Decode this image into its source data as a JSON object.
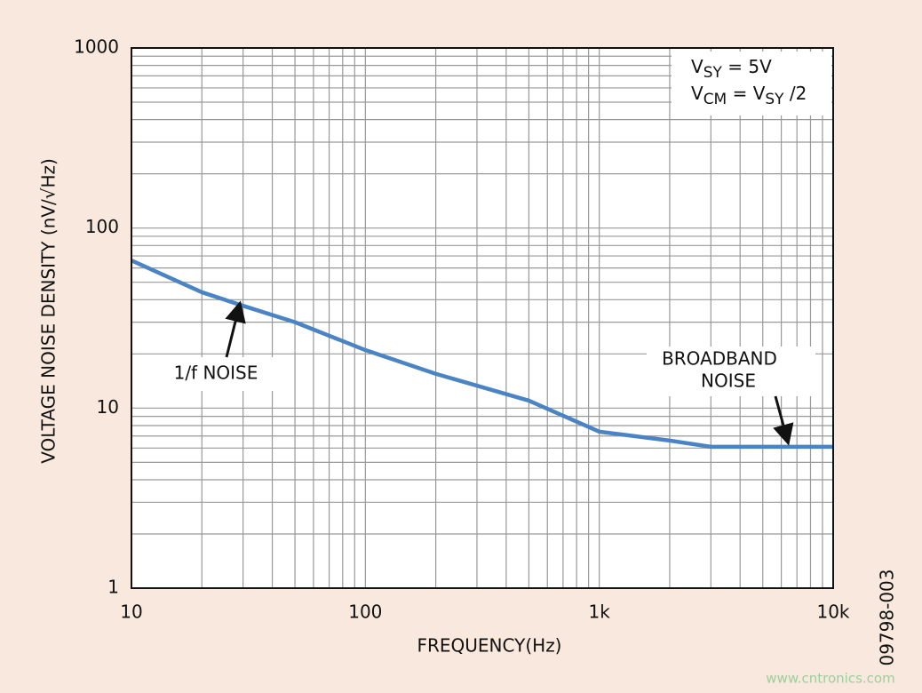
{
  "chart_data": {
    "type": "line",
    "x_label": "FREQUENCY(Hz)",
    "y_label": "VOLTAGE NOISE DENSITY (nV/√Hz)",
    "x": [
      10,
      20,
      30,
      50,
      100,
      200,
      500,
      1000,
      2000,
      3000,
      10000
    ],
    "series": [
      {
        "color": "#4a84c4",
        "values": [
          66,
          44,
          37,
          30,
          21,
          15.5,
          11,
          7.4,
          6.6,
          6.1,
          6.1
        ]
      }
    ],
    "xlim": [
      10,
      10000
    ],
    "ylim": [
      1,
      1000
    ],
    "xticks": [
      10,
      100,
      {
        "value": 1000,
        "label": "1k"
      },
      {
        "value": 10000,
        "label": "10k"
      }
    ],
    "yticks": [
      1,
      10,
      100,
      1000
    ],
    "log_x": true,
    "log_y": true,
    "grid": true,
    "minor_grid": true,
    "conditions": [
      [
        {
          "text": "V",
          "sub": false
        },
        {
          "text": "SY",
          "sub": true
        },
        {
          "text": " = 5V",
          "sub": false
        }
      ],
      [
        {
          "text": "V",
          "sub": false
        },
        {
          "text": "CM",
          "sub": true
        },
        {
          "text": " = V",
          "sub": false
        },
        {
          "text": "SY",
          "sub": true
        },
        {
          "text": " /2",
          "sub": false
        }
      ]
    ],
    "annotations": [
      "1/f NOISE",
      "BROADBAND",
      "NOISE"
    ],
    "figure_id": "09798-003",
    "watermark": "www.cntronics.com"
  }
}
